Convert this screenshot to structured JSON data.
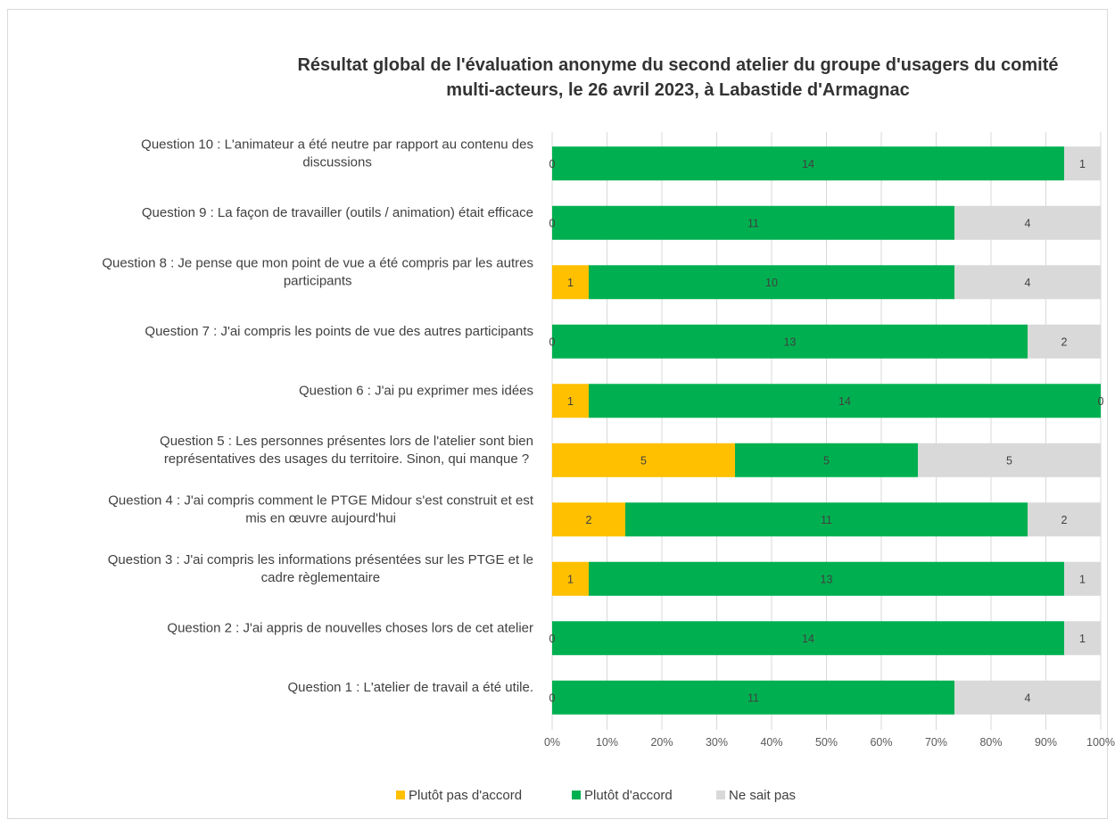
{
  "chart_data": {
    "type": "bar",
    "orientation": "horizontal",
    "stacking": "percent",
    "title": "Résultat global de l'évaluation anonyme du second atelier du groupe d'usagers du comité multi-acteurs, le 26 avril 2023, à Labastide d'Armagnac",
    "title_lines": [
      "Résultat global de l'évaluation anonyme du second atelier du groupe d'usagers du comité",
      "multi-acteurs, le 26 avril 2023, à Labastide d'Armagnac"
    ],
    "categories": [
      {
        "label": "Question 10 : L'animateur a été neutre par rapport au contenu des discussions",
        "lines": [
          "Question 10 : L'animateur a été neutre par rapport au contenu des",
          "discussions"
        ]
      },
      {
        "label": "Question 9 : La façon de travailler (outils / animation) était efficace",
        "lines": [
          "Question 9 : La façon de travailler (outils / animation) était efficace"
        ]
      },
      {
        "label": "Question 8 : Je pense que mon point de vue a été compris par les autres participants",
        "lines": [
          "Question 8 : Je pense que mon point de vue a été compris par les autres",
          "participants"
        ]
      },
      {
        "label": "Question 7 : J'ai compris les points de vue des autres participants",
        "lines": [
          "Question 7 : J'ai compris les points de vue des autres participants"
        ]
      },
      {
        "label": "Question 6 : J'ai pu exprimer mes idées",
        "lines": [
          "Question 6 : J'ai pu exprimer mes idées"
        ]
      },
      {
        "label": "Question 5 : Les personnes présentes lors de l'atelier sont bien représentatives des usages du territoire. Sinon, qui manque ?",
        "lines": [
          "Question 5 : Les personnes présentes lors de l'atelier sont bien",
          "représentatives des usages du territoire. Sinon, qui manque ?"
        ]
      },
      {
        "label": "Question 4 : J'ai compris comment le PTGE Midour s'est construit et est mis en œuvre aujourd'hui",
        "lines": [
          "Question 4 : J'ai compris comment le PTGE Midour s'est construit et est",
          "mis en œuvre aujourd'hui"
        ]
      },
      {
        "label": "Question 3 : J'ai compris les informations présentées sur les PTGE et le cadre règlementaire",
        "lines": [
          "Question 3 : J'ai compris les informations présentées sur les PTGE et le",
          "cadre règlementaire"
        ]
      },
      {
        "label": "Question 2 : J'ai appris de nouvelles choses lors de cet atelier",
        "lines": [
          "Question 2 : J'ai appris de nouvelles choses lors de cet atelier"
        ]
      },
      {
        "label": "Question 1 : L'atelier de travail a été utile.",
        "lines": [
          "Question 1 : L'atelier de travail a été utile."
        ]
      }
    ],
    "series": [
      {
        "name": "Plutôt pas d'accord",
        "color": "#FFC000",
        "values": [
          0,
          0,
          1,
          0,
          1,
          5,
          2,
          1,
          0,
          0
        ]
      },
      {
        "name": "Plutôt d'accord",
        "color": "#00B050",
        "values": [
          14,
          11,
          10,
          13,
          14,
          5,
          11,
          13,
          14,
          11
        ]
      },
      {
        "name": "Ne sait pas",
        "color": "#D9D9D9",
        "values": [
          1,
          4,
          4,
          2,
          0,
          5,
          2,
          1,
          1,
          4
        ]
      }
    ],
    "xlim": [
      0,
      100
    ],
    "x_ticks": [
      "0%",
      "10%",
      "20%",
      "30%",
      "40%",
      "50%",
      "60%",
      "70%",
      "80%",
      "90%",
      "100%"
    ],
    "xlabel": "",
    "ylabel": "",
    "grid": true,
    "legend_position": "bottom",
    "data_labels": true
  }
}
